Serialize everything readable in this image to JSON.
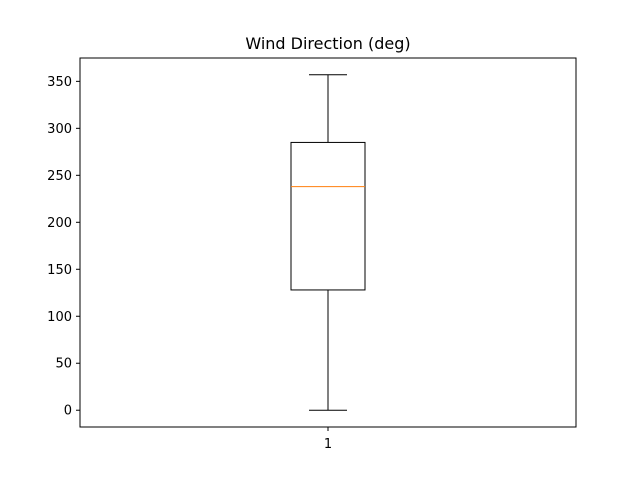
{
  "chart_data": {
    "type": "box",
    "title": "Wind Direction (deg)",
    "xlabel": "",
    "ylabel": "",
    "categories": [
      "1"
    ],
    "boxes": [
      {
        "label": "1",
        "whisker_low": 0,
        "q1": 128,
        "median": 238,
        "q3": 285,
        "whisker_high": 357
      }
    ],
    "ylim": [
      -17.85,
      374.85
    ],
    "yticks": [
      0,
      50,
      100,
      150,
      200,
      250,
      300,
      350
    ],
    "grid": false,
    "colors": {
      "box": "#000000",
      "median": "#ff7f0e",
      "axes": "#000000",
      "background": "#ffffff"
    }
  }
}
